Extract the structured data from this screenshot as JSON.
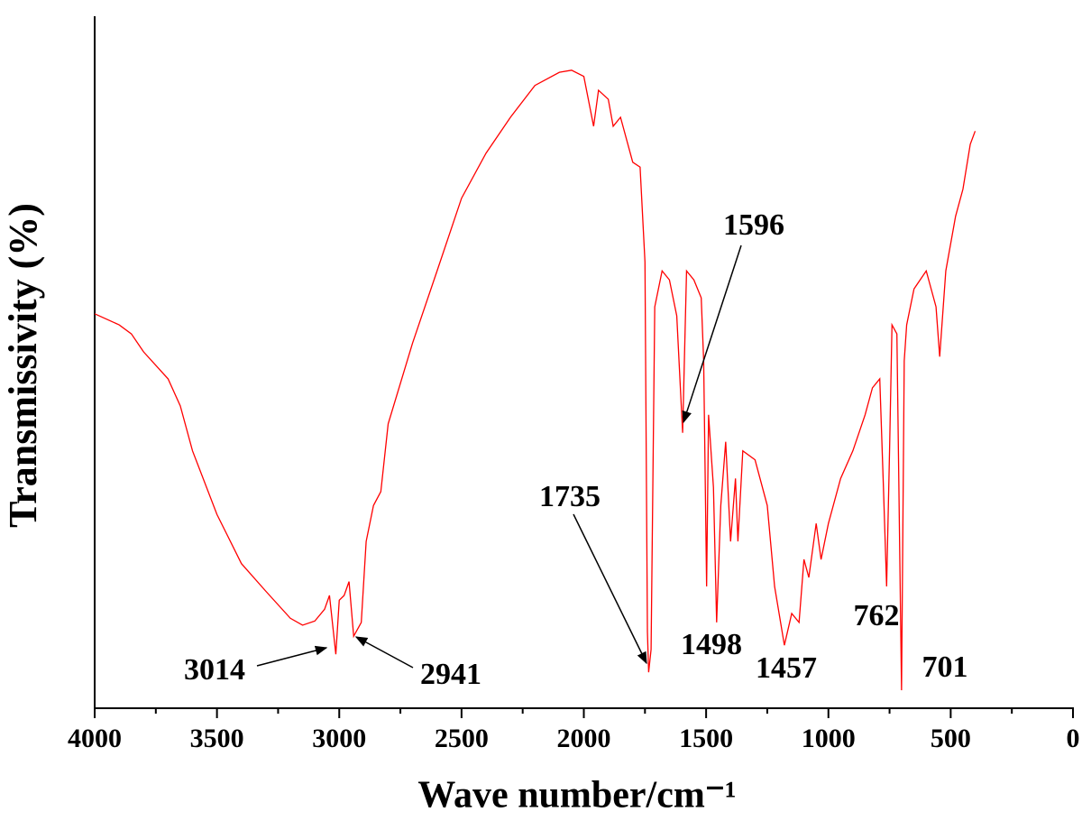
{
  "chart_data": {
    "type": "line",
    "x_label": "Wave number/cm⁻¹",
    "y_label": "Transmissivity (%)",
    "color": "#ff0000",
    "x": [
      4000,
      3900,
      3850,
      3800,
      3700,
      3650,
      3600,
      3500,
      3400,
      3300,
      3200,
      3150,
      3100,
      3060,
      3040,
      3014,
      3000,
      2980,
      2960,
      2941,
      2910,
      2890,
      2860,
      2830,
      2800,
      2700,
      2600,
      2500,
      2400,
      2300,
      2200,
      2100,
      2050,
      2000,
      1960,
      1940,
      1900,
      1880,
      1850,
      1800,
      1770,
      1750,
      1740,
      1735,
      1725,
      1710,
      1680,
      1650,
      1620,
      1596,
      1580,
      1550,
      1520,
      1510,
      1498,
      1490,
      1470,
      1457,
      1440,
      1420,
      1400,
      1380,
      1370,
      1350,
      1300,
      1250,
      1220,
      1180,
      1150,
      1120,
      1100,
      1080,
      1050,
      1030,
      1000,
      950,
      900,
      850,
      820,
      790,
      775,
      762,
      750,
      740,
      720,
      701,
      690,
      680,
      650,
      600,
      560,
      545,
      520,
      480,
      450,
      420,
      400
    ],
    "values": [
      57.0,
      55.4,
      54.1,
      51.5,
      47.6,
      43.7,
      37.2,
      28.0,
      20.9,
      16.9,
      13.0,
      12.0,
      12.6,
      14.3,
      16.3,
      7.8,
      15.6,
      16.3,
      18.3,
      10.4,
      12.4,
      24.1,
      29.3,
      31.3,
      41.1,
      52.8,
      63.2,
      73.7,
      80.2,
      85.4,
      90.0,
      91.9,
      92.2,
      91.3,
      84.1,
      89.3,
      88.0,
      84.1,
      85.4,
      78.9,
      78.2,
      64.5,
      11.1,
      5.2,
      8.5,
      58.0,
      63.2,
      61.9,
      56.7,
      39.8,
      63.2,
      61.9,
      59.3,
      50.2,
      17.6,
      42.4,
      31.9,
      12.4,
      29.3,
      38.5,
      24.1,
      33.2,
      24.1,
      37.2,
      35.9,
      29.3,
      17.6,
      9.1,
      13.7,
      12.4,
      21.5,
      18.9,
      26.7,
      21.5,
      26.7,
      33.2,
      37.2,
      42.4,
      46.3,
      47.6,
      31.9,
      17.6,
      37.2,
      55.4,
      54.1,
      2.6,
      50.2,
      55.4,
      60.6,
      63.2,
      58.0,
      50.8,
      63.2,
      71.1,
      75.0,
      81.5,
      83.4
    ],
    "xlim": [
      4000,
      0
    ],
    "xticks": [
      4000,
      3500,
      3000,
      2500,
      2000,
      1500,
      1000,
      500,
      0
    ],
    "xminorticks": [
      3750,
      3250,
      2750,
      2250,
      1750,
      1250,
      750,
      250
    ],
    "ylim": [
      0,
      100
    ],
    "annotations": [
      "3014",
      "2941",
      "1735",
      "1596",
      "1498",
      "1457",
      "762",
      "701"
    ]
  }
}
